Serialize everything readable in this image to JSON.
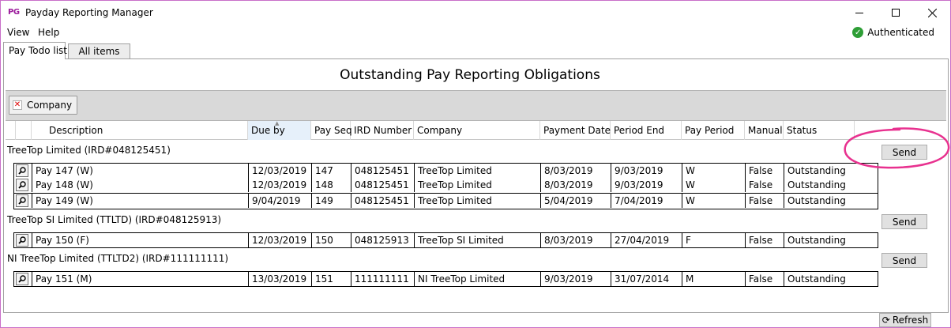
{
  "window": {
    "logo": "PG",
    "title": "Payday Reporting Manager"
  },
  "menu": {
    "view": "View",
    "help": "Help"
  },
  "status": {
    "auth_text": "Authenticated",
    "auth_icon": "check-circle-icon",
    "auth_color": "#2e9e36"
  },
  "tabs": [
    {
      "label": "Pay Todo list",
      "active": true
    },
    {
      "label": "All items",
      "active": false
    }
  ],
  "heading": "Outstanding Pay Reporting Obligations",
  "group_panel": {
    "chip_label": "Company"
  },
  "columns": [
    "Description",
    "Due by",
    "Pay Seq",
    "IRD Number",
    "Company",
    "Payment Date",
    "Period End",
    "Pay Period",
    "Manual",
    "Status"
  ],
  "groups": [
    {
      "label": "TreeTop Limited  (IRD#048125451)",
      "send": "Send",
      "rows": [
        [
          "Pay 147 (W)",
          "12/03/2019",
          "147",
          "048125451",
          "TreeTop Limited",
          "8/03/2019",
          "9/03/2019",
          "W",
          "False",
          "Outstanding"
        ],
        [
          "Pay 148 (W)",
          "12/03/2019",
          "148",
          "048125451",
          "TreeTop Limited",
          "8/03/2019",
          "9/03/2019",
          "W",
          "False",
          "Outstanding"
        ],
        [
          "Pay 149 (W)",
          "9/04/2019",
          "149",
          "048125451",
          "TreeTop Limited",
          "5/04/2019",
          "7/04/2019",
          "W",
          "False",
          "Outstanding"
        ]
      ]
    },
    {
      "label": "TreeTop SI Limited  (TTLTD)  (IRD#048125913)",
      "send": "Send",
      "rows": [
        [
          "Pay 150 (F)",
          "12/03/2019",
          "150",
          "048125913",
          "TreeTop SI Limited",
          "8/03/2019",
          "27/04/2019",
          "F",
          "False",
          "Outstanding"
        ]
      ]
    },
    {
      "label": "NI TreeTop Limited  (TTLTD2)  (IRD#111111111)",
      "send": "Send",
      "rows": [
        [
          "Pay 151 (M)",
          "13/03/2019",
          "151",
          "111111111",
          "NI TreeTop Limited",
          "9/03/2019",
          "31/07/2014",
          "M",
          "False",
          "Outstanding"
        ]
      ]
    }
  ],
  "footer": {
    "refresh": "Refresh"
  },
  "colors": {
    "window_border": "#c96fc9",
    "annotation": "#e8318f",
    "sorted_header": "#e6f0fa"
  }
}
